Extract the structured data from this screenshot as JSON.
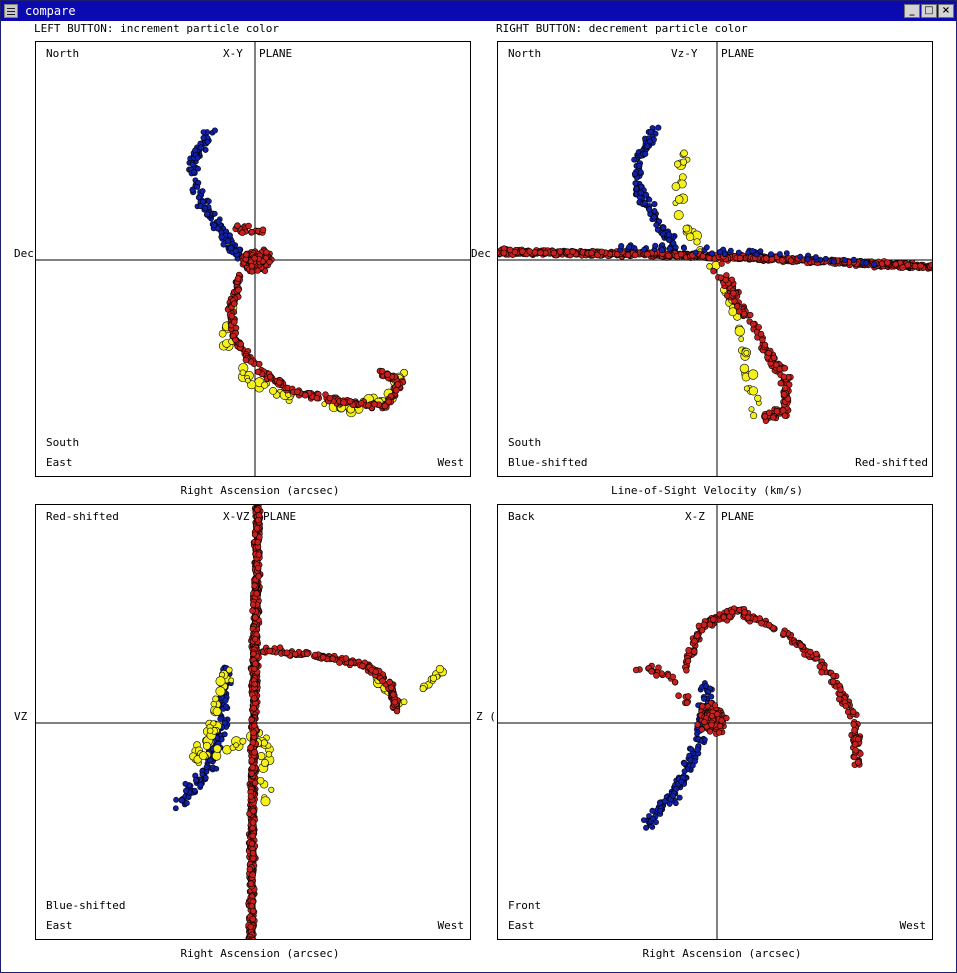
{
  "window": {
    "title": "compare",
    "buttons": {
      "minimize": "_",
      "maximize": "□",
      "close": "×"
    }
  },
  "hints": {
    "left": "LEFT BUTTON: increment particle color",
    "right": "RIGHT BUTTON: decrement particle color"
  },
  "colors": {
    "titlebar": "#0a0ab0",
    "blue_particle": "#1020a8",
    "red_particle": "#c8201c",
    "yellow_particle": "#f4f01c",
    "outline": "#000000"
  },
  "panels": [
    {
      "id": "xy",
      "plane": "X-Y",
      "plane_suffix": "PLANE",
      "top_left": "North",
      "bottom_left_1": "South",
      "bottom_left_2": "East",
      "bottom_right": "West",
      "x_axis_label": "Right Ascension (arcsec)",
      "side_label": "Dec"
    },
    {
      "id": "vzy",
      "plane": "Vz-Y",
      "plane_suffix": "PLANE",
      "top_left": "North",
      "bottom_left_1": "South",
      "bottom_left_2": "Blue-shifted",
      "bottom_right": "Red-shifted",
      "x_axis_label": "Line-of-Sight Velocity (km/s)",
      "side_label": "Dec"
    },
    {
      "id": "xvz",
      "plane": "X-VZ",
      "plane_suffix": "PLANE",
      "top_left": "Red-shifted",
      "bottom_left_1": "Blue-shifted",
      "bottom_left_2": "East",
      "bottom_right": "West",
      "x_axis_label": "Right Ascension (arcsec)",
      "side_label": "VZ ("
    },
    {
      "id": "xz",
      "plane": "X-Z",
      "plane_suffix": "PLANE",
      "top_left": "Back",
      "bottom_left_1": "Front",
      "bottom_left_2": "East",
      "bottom_right": "West",
      "x_axis_label": "Right Ascension (arcsec)",
      "side_label": "Z ("
    }
  ]
}
